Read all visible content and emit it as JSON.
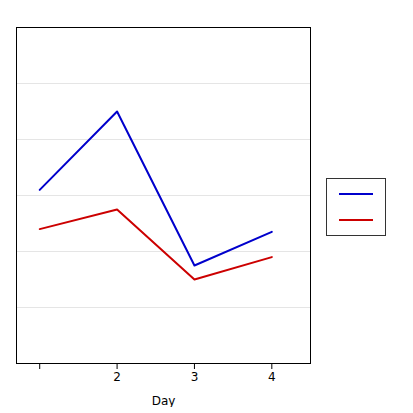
{
  "chart_data": {
    "type": "line",
    "xlabel": "Day",
    "x": [
      1,
      2,
      3,
      4
    ],
    "series": [
      {
        "color": "#0000cc",
        "values": [
          62,
          90,
          35,
          47
        ]
      },
      {
        "color": "#cc0000",
        "values": [
          48,
          55,
          30,
          38
        ]
      }
    ],
    "xlim": [
      0.7,
      4.5
    ],
    "xticks": [
      {
        "value": 1,
        "label": ""
      },
      2,
      3,
      4
    ],
    "ylim": [
      0,
      120
    ],
    "yticks": [
      0,
      20,
      40,
      60,
      80,
      100,
      120
    ],
    "grid": true,
    "tick_labels": "x",
    "legend": "right"
  }
}
